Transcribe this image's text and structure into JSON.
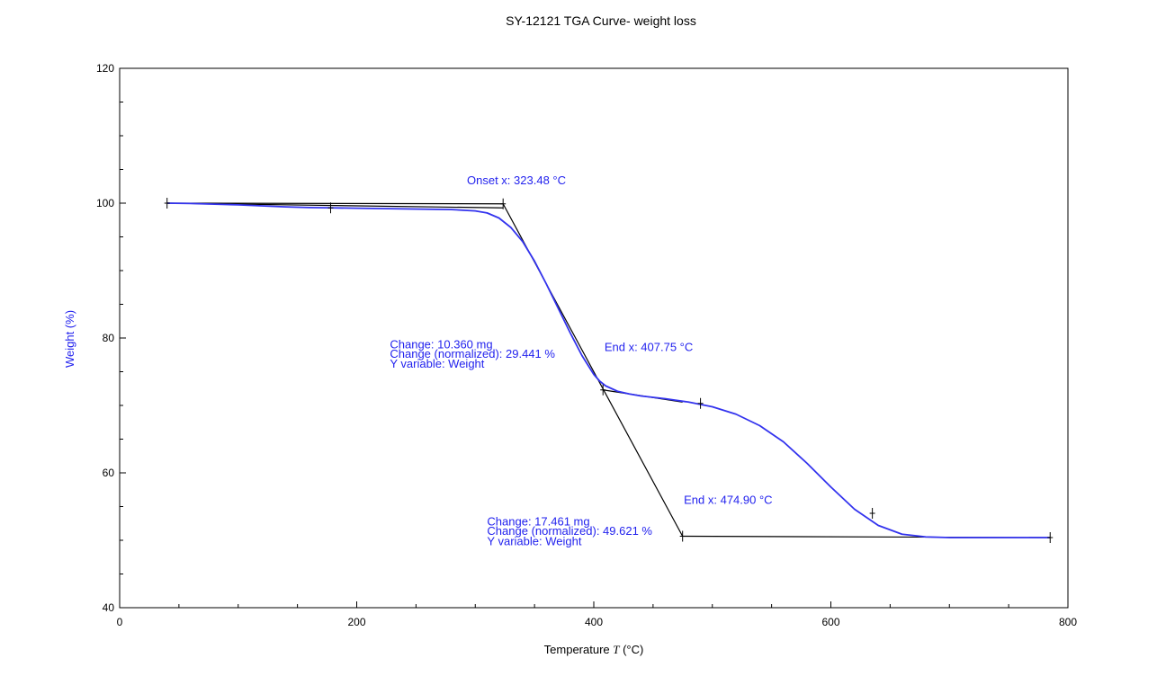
{
  "chart_data": {
    "type": "line",
    "title": "SY-12121 TGA Curve- weight loss",
    "xlabel_prefix": "Temperature ",
    "xlabel_var": "T",
    "xlabel_unit": " (°C)",
    "ylabel": "Weight (%)",
    "xlim": [
      0,
      800
    ],
    "ylim": [
      40,
      120
    ],
    "x_ticks": [
      0,
      200,
      400,
      600,
      800
    ],
    "y_ticks": [
      40,
      60,
      80,
      100,
      120
    ],
    "x_minor_step": 50,
    "y_minor_step": 5,
    "grid": false,
    "colors": {
      "curve": "#3333ee",
      "construction": "#000000",
      "annotation": "#2222ee",
      "ylabel": "#2222ee"
    },
    "series": [
      {
        "x": [
          40,
          60,
          80,
          100,
          120,
          140,
          160,
          180,
          200,
          220,
          240,
          260,
          280,
          300,
          310,
          320,
          330,
          340,
          350,
          360,
          370,
          380,
          390,
          400,
          405,
          410,
          420,
          430,
          440,
          460,
          480,
          500,
          520,
          540,
          560,
          580,
          600,
          620,
          640,
          660,
          680,
          700,
          720,
          740,
          760,
          785
        ],
        "y": [
          100.0,
          99.95,
          99.85,
          99.75,
          99.6,
          99.45,
          99.35,
          99.3,
          99.25,
          99.2,
          99.15,
          99.1,
          99.05,
          98.85,
          98.55,
          97.8,
          96.4,
          94.3,
          91.4,
          88.0,
          84.4,
          80.8,
          77.4,
          74.6,
          73.6,
          72.9,
          72.1,
          71.7,
          71.4,
          71.0,
          70.5,
          69.8,
          68.7,
          67.0,
          64.6,
          61.4,
          57.9,
          54.6,
          52.2,
          50.9,
          50.5,
          50.4,
          50.4,
          50.4,
          50.4,
          50.4
        ]
      }
    ],
    "construction_lines": [
      {
        "x": [
          40,
          323.48
        ],
        "y": [
          100.0,
          99.9
        ]
      },
      {
        "x": [
          40,
          323.48
        ],
        "y": [
          100.0,
          99.3
        ]
      },
      {
        "x": [
          323.48,
          474.9
        ],
        "y": [
          99.9,
          50.6
        ]
      },
      {
        "x": [
          407.75,
          474.9
        ],
        "y": [
          72.3,
          70.5
        ]
      },
      {
        "x": [
          474.9,
          785
        ],
        "y": [
          50.6,
          50.4
        ]
      }
    ],
    "markers": [
      {
        "x": 323.48,
        "y": 99.9
      },
      {
        "x": 407.75,
        "y": 72.3
      },
      {
        "x": 474.9,
        "y": 50.6
      },
      {
        "x": 40,
        "y": 100.0
      },
      {
        "x": 178,
        "y": 99.3
      },
      {
        "x": 490,
        "y": 70.3
      },
      {
        "x": 635,
        "y": 54.0
      },
      {
        "x": 785,
        "y": 50.4
      }
    ],
    "annotations": [
      {
        "text": "Onset x: 323.48 °C",
        "x": 293,
        "y": 102.8
      },
      {
        "text": "Change: 10.360 mg",
        "x": 228,
        "y": 78.5
      },
      {
        "text": "Change (normalized): 29.441 %",
        "x": 228,
        "y": 77.1
      },
      {
        "text": "Y variable: Weight",
        "x": 228,
        "y": 75.6
      },
      {
        "text": "End x: 407.75 °C",
        "x": 409,
        "y": 78.1
      },
      {
        "text": "End x: 474.90 °C",
        "x": 476,
        "y": 55.4
      },
      {
        "text": "Change: 17.461 mg",
        "x": 310,
        "y": 52.2
      },
      {
        "text": "Change (normalized): 49.621 %",
        "x": 310,
        "y": 50.8
      },
      {
        "text": "Y variable: Weight",
        "x": 310,
        "y": 49.3
      }
    ]
  }
}
